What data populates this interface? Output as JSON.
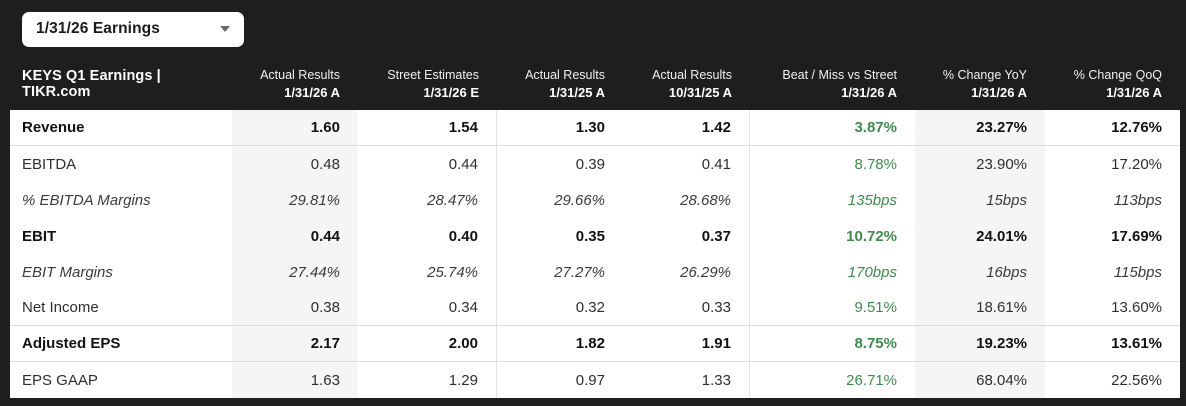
{
  "dropdown": {
    "label": "1/31/26 Earnings",
    "caret_icon": "chevron-down"
  },
  "table": {
    "title": "KEYS Q1 Earnings | TIKR.com",
    "columns": [
      {
        "line1": "Actual Results",
        "line2": "1/31/26 A"
      },
      {
        "line1": "Street Estimates",
        "line2": "1/31/26 E"
      },
      {
        "line1": "Actual Results",
        "line2": "1/31/25 A"
      },
      {
        "line1": "Actual Results",
        "line2": "10/31/25 A"
      },
      {
        "line1": "Beat / Miss vs Street",
        "line2": "1/31/26 A"
      },
      {
        "line1": "% Change YoY",
        "line2": "1/31/26 A"
      },
      {
        "line1": "% Change QoQ",
        "line2": "1/31/26 A"
      }
    ],
    "rows": [
      {
        "label": "Revenue",
        "style": "bold",
        "divider": true,
        "values": [
          "1.60",
          "1.54",
          "1.30",
          "1.42",
          "3.87%",
          "23.27%",
          "12.76%"
        ]
      },
      {
        "label": "EBITDA",
        "style": "regular",
        "divider": false,
        "values": [
          "0.48",
          "0.44",
          "0.39",
          "0.41",
          "8.78%",
          "23.90%",
          "17.20%"
        ]
      },
      {
        "label": "% EBITDA Margins",
        "style": "italic",
        "divider": false,
        "values": [
          "29.81%",
          "28.47%",
          "29.66%",
          "28.68%",
          "135bps",
          "15bps",
          "113bps"
        ]
      },
      {
        "label": "EBIT",
        "style": "bold",
        "divider": false,
        "values": [
          "0.44",
          "0.40",
          "0.35",
          "0.37",
          "10.72%",
          "24.01%",
          "17.69%"
        ]
      },
      {
        "label": "EBIT Margins",
        "style": "italic",
        "divider": false,
        "values": [
          "27.44%",
          "25.74%",
          "27.27%",
          "26.29%",
          "170bps",
          "16bps",
          "115bps"
        ]
      },
      {
        "label": "Net Income",
        "style": "regular",
        "divider": true,
        "values": [
          "0.38",
          "0.34",
          "0.32",
          "0.33",
          "9.51%",
          "18.61%",
          "13.60%"
        ]
      },
      {
        "label": "Adjusted EPS",
        "style": "bold",
        "divider": true,
        "values": [
          "2.17",
          "2.00",
          "1.82",
          "1.91",
          "8.75%",
          "19.23%",
          "13.61%"
        ]
      },
      {
        "label": "EPS GAAP",
        "style": "regular",
        "divider": false,
        "values": [
          "1.63",
          "1.29",
          "0.97",
          "1.33",
          "26.71%",
          "68.04%",
          "22.56%"
        ]
      }
    ]
  },
  "colors": {
    "frame_dark": "#1e1e1e",
    "row_white": "#ffffff",
    "column_shade": "#f5f5f5",
    "positive_green": "#3f8b4e",
    "divider_gray": "#dcdcdc"
  }
}
